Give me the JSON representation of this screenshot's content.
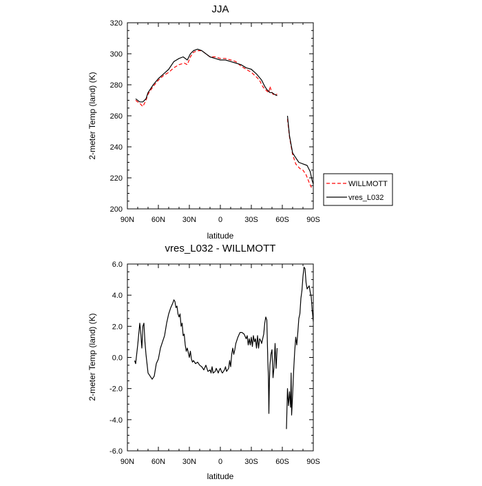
{
  "chart_data": [
    {
      "type": "line",
      "title": "JJA",
      "xlabel": "latitude",
      "ylabel": "2-meter Temp (land) (K)",
      "xlim": [
        90,
        -90
      ],
      "ylim": [
        200,
        320
      ],
      "x_ticks": [
        90,
        60,
        30,
        0,
        -30,
        -60,
        -90
      ],
      "x_tick_labels": [
        "90N",
        "60N",
        "30N",
        "0",
        "30S",
        "60S",
        "90S"
      ],
      "y_ticks": [
        200,
        220,
        240,
        260,
        280,
        300,
        320
      ],
      "y_tick_labels": [
        "200",
        "220",
        "240",
        "260",
        "280",
        "300",
        "320"
      ],
      "legend_position": "right",
      "series": [
        {
          "name": "WILLMOTT",
          "color": "#ff0000",
          "dashed": true,
          "segments": [
            [
              [
                82,
                270
              ],
              [
                78,
                268
              ],
              [
                75,
                266
              ],
              [
                72,
                270
              ],
              [
                70,
                274
              ],
              [
                65,
                279
              ],
              [
                60,
                283
              ],
              [
                55,
                286
              ],
              [
                50,
                288
              ],
              [
                45,
                291
              ],
              [
                40,
                293
              ],
              [
                35,
                294
              ],
              [
                32,
                293
              ],
              [
                29,
                298
              ],
              [
                26,
                301
              ],
              [
                22,
                302
              ],
              [
                18,
                302
              ],
              [
                14,
                300
              ],
              [
                10,
                298
              ],
              [
                5,
                298
              ],
              [
                0,
                297
              ],
              [
                -5,
                297
              ],
              [
                -10,
                296
              ],
              [
                -15,
                295
              ],
              [
                -20,
                292
              ],
              [
                -25,
                290
              ],
              [
                -30,
                288
              ],
              [
                -35,
                285
              ],
              [
                -38,
                283
              ],
              [
                -40,
                280
              ],
              [
                -42,
                278
              ],
              [
                -45,
                276
              ],
              [
                -47,
                275
              ],
              [
                -48,
                279
              ],
              [
                -50,
                275
              ],
              [
                -52,
                273
              ],
              [
                -55,
                274
              ]
            ],
            [
              [
                -65,
                258
              ],
              [
                -67,
                246
              ],
              [
                -70,
                235
              ],
              [
                -73,
                229
              ],
              [
                -77,
                226
              ],
              [
                -80,
                225
              ],
              [
                -83,
                222
              ],
              [
                -86,
                217
              ],
              [
                -88,
                214
              ],
              [
                -90,
                215
              ]
            ]
          ]
        },
        {
          "name": "vres_L032",
          "color": "#000000",
          "dashed": false,
          "segments": [
            [
              [
                82,
                271
              ],
              [
                78,
                269
              ],
              [
                75,
                269
              ],
              [
                72,
                271
              ],
              [
                70,
                275
              ],
              [
                65,
                280
              ],
              [
                60,
                284
              ],
              [
                55,
                287
              ],
              [
                50,
                290
              ],
              [
                45,
                295
              ],
              [
                40,
                297
              ],
              [
                36,
                298
              ],
              [
                32,
                296
              ],
              [
                29,
                300
              ],
              [
                26,
                302
              ],
              [
                22,
                303
              ],
              [
                18,
                302
              ],
              [
                14,
                300
              ],
              [
                10,
                298
              ],
              [
                5,
                297
              ],
              [
                0,
                296
              ],
              [
                -5,
                296
              ],
              [
                -10,
                295
              ],
              [
                -15,
                294
              ],
              [
                -20,
                293
              ],
              [
                -25,
                291
              ],
              [
                -30,
                290
              ],
              [
                -35,
                287
              ],
              [
                -40,
                283
              ],
              [
                -43,
                279
              ],
              [
                -45,
                277
              ],
              [
                -48,
                275
              ],
              [
                -50,
                275
              ],
              [
                -52,
                274
              ],
              [
                -55,
                273
              ]
            ],
            [
              [
                -65,
                260
              ],
              [
                -67,
                247
              ],
              [
                -70,
                236
              ],
              [
                -73,
                233
              ],
              [
                -76,
                230
              ],
              [
                -80,
                229
              ],
              [
                -84,
                228
              ],
              [
                -87,
                224
              ],
              [
                -89,
                218
              ],
              [
                -90,
                216
              ]
            ]
          ]
        }
      ]
    },
    {
      "type": "line",
      "title": "vres_L032 - WILLMOTT",
      "xlabel": "latitude",
      "ylabel": "2-meter Temp (land) (K)",
      "xlim": [
        90,
        -90
      ],
      "ylim": [
        -6,
        6
      ],
      "x_ticks": [
        90,
        60,
        30,
        0,
        -30,
        -60,
        -90
      ],
      "x_tick_labels": [
        "90N",
        "60N",
        "30N",
        "0",
        "30S",
        "60S",
        "90S"
      ],
      "y_ticks": [
        -6,
        -4,
        -2,
        0,
        2,
        4,
        6
      ],
      "y_tick_labels": [
        "-6.0",
        "-4.0",
        "-2.0",
        "0.0",
        "2.0",
        "4.0",
        "6.0"
      ],
      "series": [
        {
          "color": "#000000",
          "segments": [
            [
              [
                83,
                -0.2
              ],
              [
                82,
                -0.4
              ],
              [
                80,
                0.8
              ],
              [
                78,
                2.2
              ],
              [
                77,
                1.5
              ],
              [
                76,
                0.6
              ],
              [
                75,
                2.0
              ],
              [
                74,
                2.2
              ],
              [
                73,
                1.0
              ],
              [
                72,
                0.2
              ],
              [
                70,
                -1.0
              ],
              [
                68,
                -1.2
              ],
              [
                66,
                -1.4
              ],
              [
                64,
                -1.2
              ],
              [
                62,
                -0.4
              ],
              [
                60,
                -0.1
              ],
              [
                58,
                0.6
              ],
              [
                56,
                1.0
              ],
              [
                54,
                1.4
              ],
              [
                52,
                2.2
              ],
              [
                50,
                2.8
              ],
              [
                48,
                3.2
              ],
              [
                46,
                3.5
              ],
              [
                45,
                3.7
              ],
              [
                44,
                3.6
              ],
              [
                43,
                3.2
              ],
              [
                42,
                3.3
              ],
              [
                41,
                2.8
              ],
              [
                40,
                2.6
              ],
              [
                39,
                2.8
              ],
              [
                38,
                2.0
              ],
              [
                37,
                2.2
              ],
              [
                36,
                1.4
              ],
              [
                35,
                1.5
              ],
              [
                34,
                0.8
              ],
              [
                33,
                0.4
              ],
              [
                32,
                0.6
              ],
              [
                30,
                0.0
              ],
              [
                29,
                0.4
              ],
              [
                28,
                -0.1
              ],
              [
                27,
                -0.3
              ],
              [
                26,
                -0.2
              ],
              [
                24,
                -0.4
              ],
              [
                22,
                -0.3
              ],
              [
                20,
                -0.5
              ],
              [
                18,
                -0.6
              ],
              [
                16,
                -0.8
              ],
              [
                14,
                -0.5
              ],
              [
                12,
                -0.9
              ],
              [
                10,
                -0.8
              ],
              [
                9,
                -1.0
              ],
              [
                8,
                -0.6
              ],
              [
                7,
                -1.0
              ],
              [
                5,
                -0.9
              ],
              [
                4,
                -0.7
              ],
              [
                2,
                -1.0
              ],
              [
                1,
                -0.8
              ],
              [
                0,
                -0.7
              ],
              [
                -1,
                -0.9
              ],
              [
                -2,
                -1.0
              ],
              [
                -4,
                -0.8
              ],
              [
                -5,
                -0.6
              ],
              [
                -6,
                -0.9
              ],
              [
                -8,
                -0.7
              ],
              [
                -9,
                -0.2
              ],
              [
                -10,
                -0.6
              ],
              [
                -11,
                0.2
              ],
              [
                -12,
                0.6
              ],
              [
                -13,
                0.2
              ],
              [
                -14,
                0.5
              ],
              [
                -15,
                0.9
              ],
              [
                -17,
                1.3
              ],
              [
                -19,
                1.6
              ],
              [
                -21,
                1.6
              ],
              [
                -23,
                1.5
              ],
              [
                -25,
                1.2
              ],
              [
                -26,
                1.4
              ],
              [
                -27,
                0.8
              ],
              [
                -28,
                1.2
              ],
              [
                -29,
                0.8
              ],
              [
                -30,
                1.3
              ],
              [
                -31,
                0.7
              ],
              [
                -32,
                1.4
              ],
              [
                -33,
                1.0
              ],
              [
                -34,
                1.2
              ],
              [
                -35,
                0.6
              ],
              [
                -36,
                1.4
              ],
              [
                -37,
                0.6
              ],
              [
                -38,
                1.2
              ],
              [
                -39,
                1.1
              ],
              [
                -40,
                0.9
              ],
              [
                -41,
                1.2
              ],
              [
                -42,
                1.5
              ],
              [
                -43,
                2.2
              ],
              [
                -44,
                2.6
              ],
              [
                -45,
                2.4
              ],
              [
                -46,
                -0.3
              ],
              [
                -46.5,
                -1.2
              ],
              [
                -47,
                -3.6
              ],
              [
                -47.5,
                -1.5
              ],
              [
                -48,
                -0.5
              ],
              [
                -49,
                0.2
              ],
              [
                -50,
                0.5
              ],
              [
                -51,
                -1.3
              ],
              [
                -52,
                -0.6
              ],
              [
                -53,
                0.9
              ],
              [
                -54,
                -0.7
              ],
              [
                -55,
                0.6
              ]
            ],
            [
              [
                -64,
                -4.6
              ],
              [
                -65,
                -2.0
              ],
              [
                -66,
                -3.1
              ],
              [
                -67,
                -2.2
              ],
              [
                -68,
                -3.2
              ],
              [
                -68.5,
                -1.0
              ],
              [
                -69,
                -3.7
              ],
              [
                -70,
                -2.4
              ],
              [
                -71,
                -0.8
              ],
              [
                -72,
                0.4
              ],
              [
                -73,
                1.3
              ],
              [
                -74,
                0.8
              ],
              [
                -75,
                1.6
              ],
              [
                -76,
                2.5
              ],
              [
                -77,
                2.8
              ],
              [
                -78,
                3.8
              ],
              [
                -79,
                4.3
              ],
              [
                -80,
                5.2
              ],
              [
                -81,
                5.8
              ],
              [
                -82,
                5.7
              ],
              [
                -83,
                4.8
              ],
              [
                -84,
                4.4
              ],
              [
                -85,
                4.5
              ],
              [
                -86,
                4.6
              ],
              [
                -87,
                4.2
              ],
              [
                -88,
                3.9
              ],
              [
                -89,
                3.0
              ],
              [
                -90,
                2.3
              ]
            ]
          ]
        }
      ]
    }
  ]
}
